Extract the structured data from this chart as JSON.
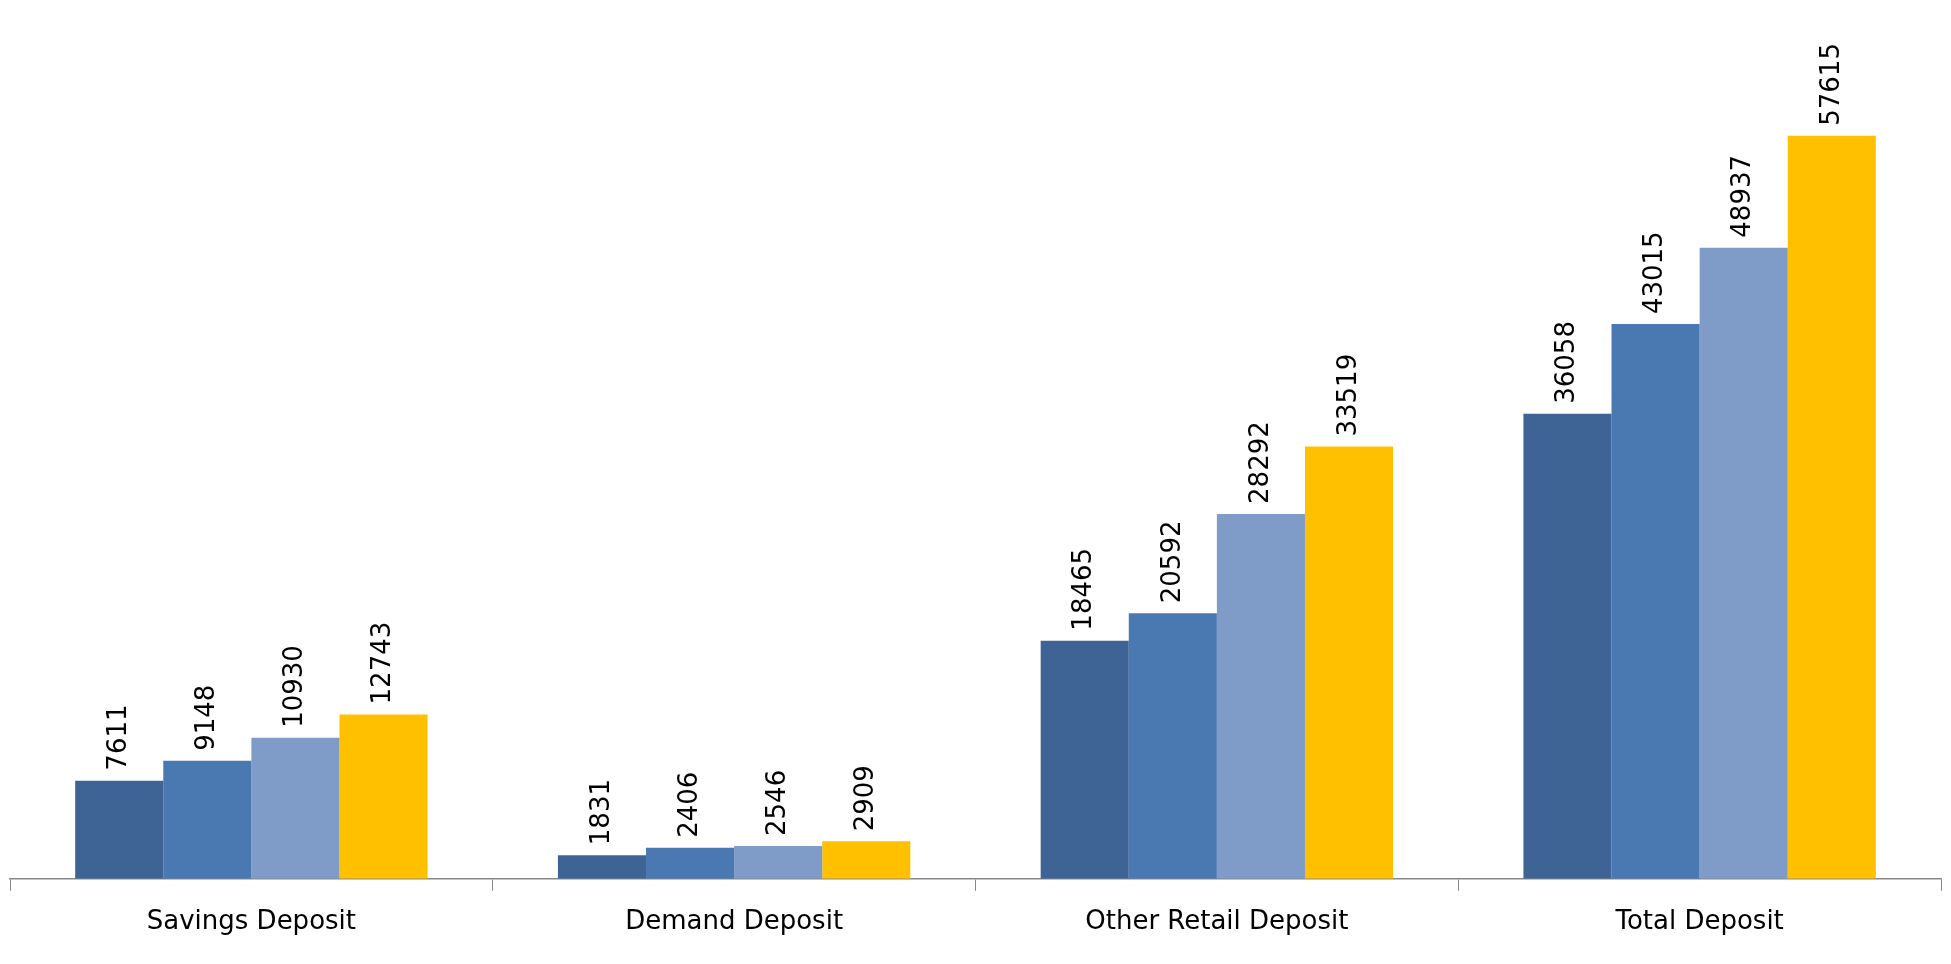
{
  "chart_data": {
    "type": "bar",
    "categories": [
      "Savings Deposit",
      "Demand Deposit",
      "Other Retail Deposit",
      "Total Deposit"
    ],
    "series": [
      {
        "color": "#3d6494",
        "values": [
          7611,
          1831,
          18465,
          36058
        ]
      },
      {
        "color": "#4a78b0",
        "values": [
          9148,
          2406,
          20592,
          43015
        ]
      },
      {
        "color": "#7f9cc8",
        "values": [
          10930,
          2546,
          28292,
          48937
        ]
      },
      {
        "color": "#ffc000",
        "values": [
          12743,
          2909,
          33519,
          57615
        ]
      }
    ],
    "data_labels": true,
    "legend": false
  }
}
